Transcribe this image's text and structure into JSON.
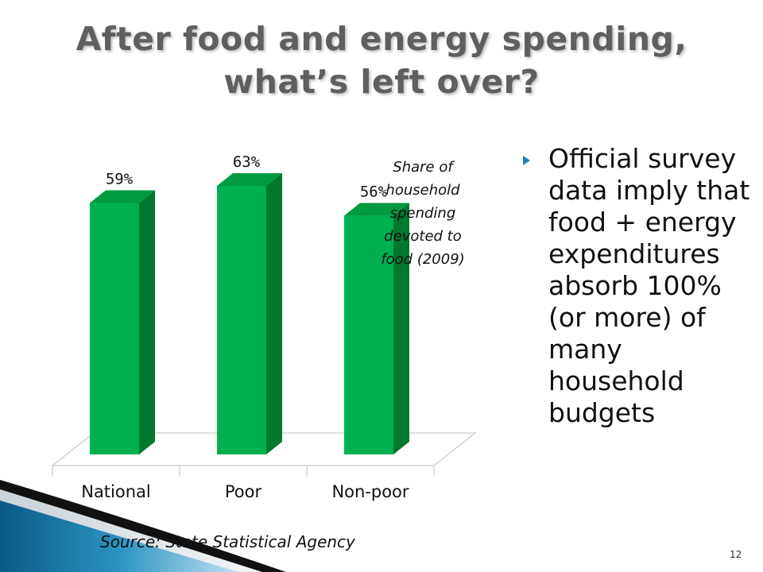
{
  "slide": {
    "title_line1": "After food and energy spending,",
    "title_line2": "what’s left over?",
    "bullet": "Official survey data imply that food + energy expenditures absorb 100% (or more) of many household budgets",
    "source": "Source: State Statistical Agency",
    "page_number": "12"
  },
  "chart_data": {
    "type": "bar",
    "categories": [
      "National",
      "Poor",
      "Non-poor"
    ],
    "values": [
      59,
      63,
      56
    ],
    "value_labels": [
      "59%",
      "63%",
      "56%"
    ],
    "annotation_lines": [
      "Share of",
      "household",
      "spending",
      "devoted to",
      "food (2009)"
    ],
    "bar_color": "#00b050",
    "bar_side_color": "#00782f",
    "bar_top_color": "#009a42"
  }
}
